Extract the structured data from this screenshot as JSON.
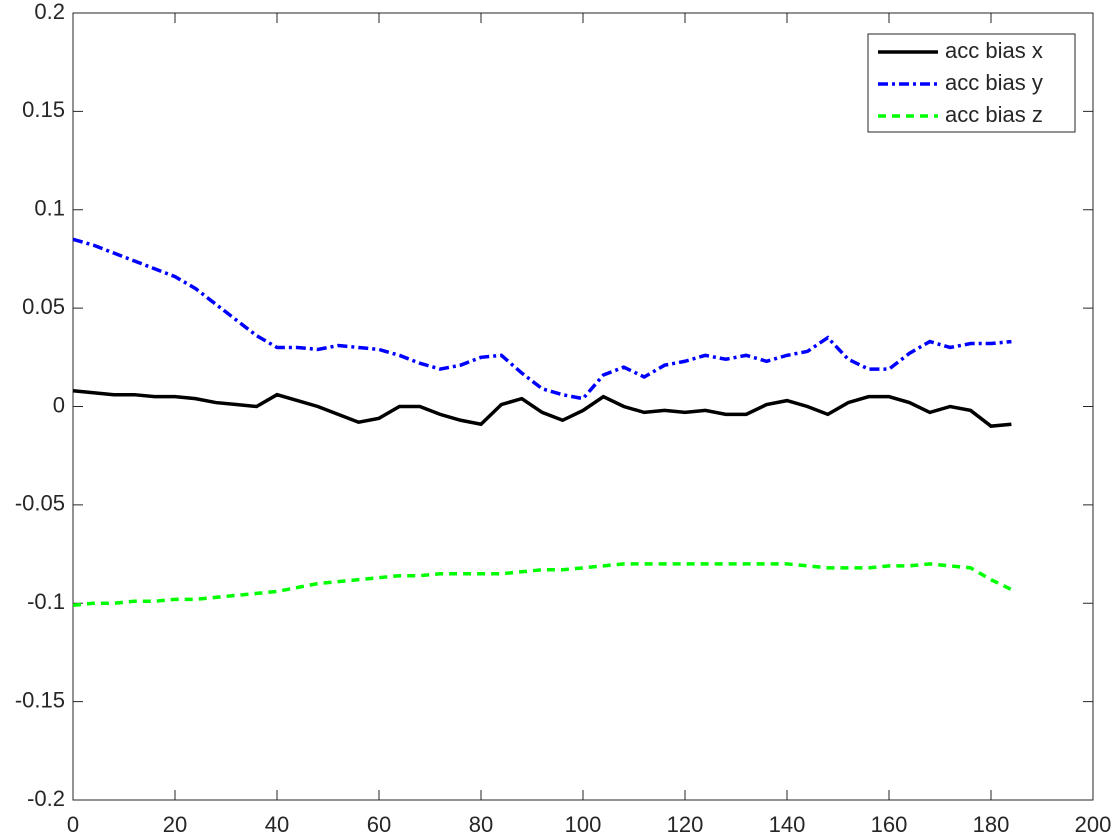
{
  "chart_data": {
    "type": "line",
    "x": [
      0,
      4,
      8,
      12,
      16,
      20,
      24,
      28,
      32,
      36,
      40,
      44,
      48,
      52,
      56,
      60,
      64,
      68,
      72,
      76,
      80,
      84,
      88,
      92,
      96,
      100,
      104,
      108,
      112,
      116,
      120,
      124,
      128,
      132,
      136,
      140,
      144,
      148,
      152,
      156,
      160,
      164,
      168,
      172,
      176,
      180,
      184
    ],
    "series": [
      {
        "name": "acc bias x",
        "color": "#000000",
        "dash": "solid",
        "values": [
          0.008,
          0.007,
          0.006,
          0.006,
          0.005,
          0.005,
          0.004,
          0.002,
          0.001,
          0.0,
          0.006,
          0.003,
          0.0,
          -0.004,
          -0.008,
          -0.006,
          0.0,
          0.0,
          -0.004,
          -0.007,
          -0.009,
          0.001,
          0.004,
          -0.003,
          -0.007,
          -0.002,
          0.005,
          0.0,
          -0.003,
          -0.002,
          -0.003,
          -0.002,
          -0.004,
          -0.004,
          0.001,
          0.003,
          0.0,
          -0.004,
          0.002,
          0.005,
          0.005,
          0.002,
          -0.003,
          0.0,
          -0.002,
          -0.01,
          -0.009
        ]
      },
      {
        "name": "acc bias y",
        "color": "#0000ff",
        "dash": "dashdot",
        "values": [
          0.085,
          0.082,
          0.078,
          0.074,
          0.07,
          0.066,
          0.06,
          0.052,
          0.044,
          0.036,
          0.03,
          0.03,
          0.029,
          0.031,
          0.03,
          0.029,
          0.026,
          0.022,
          0.019,
          0.021,
          0.025,
          0.026,
          0.017,
          0.009,
          0.006,
          0.004,
          0.016,
          0.02,
          0.015,
          0.021,
          0.023,
          0.026,
          0.024,
          0.026,
          0.023,
          0.026,
          0.028,
          0.035,
          0.024,
          0.019,
          0.019,
          0.027,
          0.033,
          0.03,
          0.032,
          0.032,
          0.033
        ]
      },
      {
        "name": "acc bias z",
        "color": "#00ff00",
        "dash": "dashed",
        "values": [
          -0.101,
          -0.1,
          -0.1,
          -0.099,
          -0.099,
          -0.098,
          -0.098,
          -0.097,
          -0.096,
          -0.095,
          -0.094,
          -0.092,
          -0.09,
          -0.089,
          -0.088,
          -0.087,
          -0.086,
          -0.086,
          -0.085,
          -0.085,
          -0.085,
          -0.085,
          -0.084,
          -0.083,
          -0.083,
          -0.082,
          -0.081,
          -0.08,
          -0.08,
          -0.08,
          -0.08,
          -0.08,
          -0.08,
          -0.08,
          -0.08,
          -0.08,
          -0.081,
          -0.082,
          -0.082,
          -0.082,
          -0.081,
          -0.081,
          -0.08,
          -0.081,
          -0.082,
          -0.088,
          -0.093
        ]
      }
    ],
    "xlim": [
      0,
      200
    ],
    "xticks": [
      0,
      20,
      40,
      60,
      80,
      100,
      120,
      140,
      160,
      180,
      200
    ],
    "ylim": [
      -0.2,
      0.2
    ],
    "yticks": [
      -0.2,
      -0.15,
      -0.1,
      -0.05,
      0,
      0.05,
      0.1,
      0.15,
      0.2
    ],
    "grid": false,
    "legend": "northeast"
  }
}
